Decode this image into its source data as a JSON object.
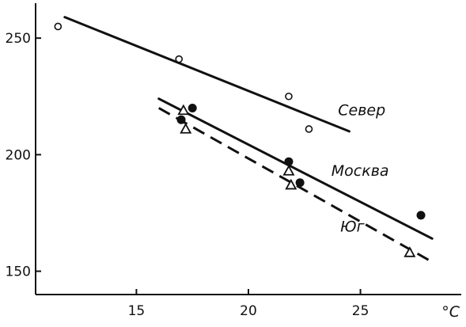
{
  "chart_data": {
    "type": "scatter",
    "title": "",
    "xlabel": "",
    "ylabel": "",
    "x_unit": "°C",
    "xlim": [
      10.5,
      29.5
    ],
    "ylim": [
      140,
      265
    ],
    "x_ticks": [
      15,
      20,
      25
    ],
    "y_ticks": [
      150,
      200,
      250
    ],
    "grid": false,
    "legend": "none",
    "series": [
      {
        "name": "Север",
        "marker": "circle-open",
        "line_style": "solid",
        "points": [
          [
            11.5,
            255
          ],
          [
            16.9,
            241
          ],
          [
            21.8,
            225
          ],
          [
            22.7,
            211
          ]
        ],
        "fit_line": [
          [
            11.8,
            259
          ],
          [
            24.5,
            210
          ]
        ],
        "label_at": [
          24.0,
          217
        ]
      },
      {
        "name": "Москва",
        "marker": "circle-filled",
        "line_style": "solid",
        "points": [
          [
            17.0,
            215
          ],
          [
            17.5,
            220
          ],
          [
            21.8,
            197
          ],
          [
            22.3,
            188
          ],
          [
            27.7,
            174
          ]
        ],
        "fit_line": [
          [
            16.0,
            224
          ],
          [
            28.2,
            164
          ]
        ],
        "label_at": [
          23.7,
          191
        ]
      },
      {
        "name": "Юг",
        "marker": "triangle-open",
        "line_style": "dashed",
        "points": [
          [
            17.1,
            219
          ],
          [
            17.2,
            211
          ],
          [
            21.8,
            193
          ],
          [
            21.9,
            187
          ],
          [
            27.2,
            158
          ]
        ],
        "fit_line": [
          [
            16.0,
            220
          ],
          [
            28.2,
            154
          ]
        ],
        "label_at": [
          24.1,
          167
        ]
      }
    ]
  }
}
